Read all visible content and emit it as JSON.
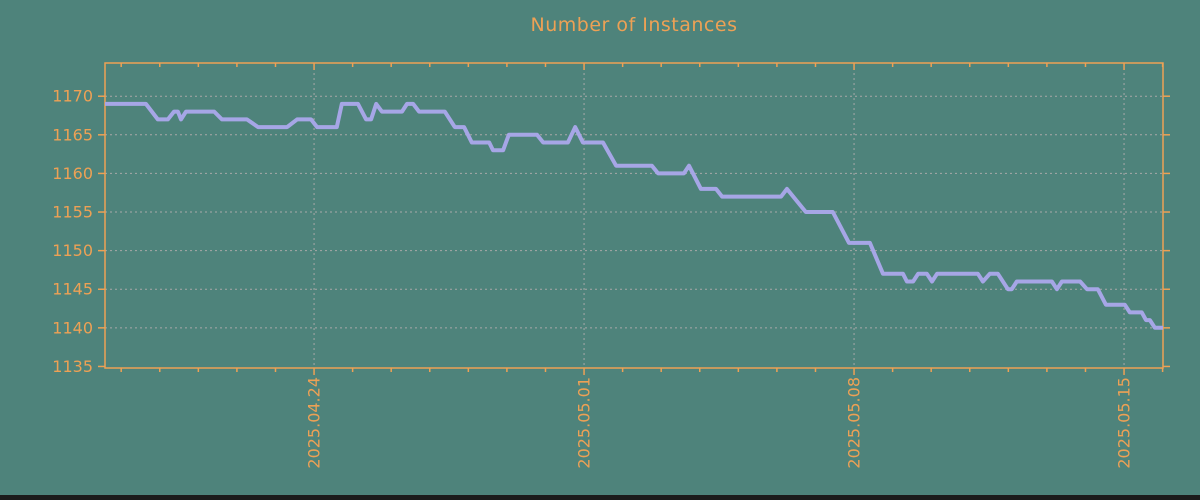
{
  "chart_data": {
    "type": "line",
    "title": "Number of Instances",
    "xlabel": "",
    "ylabel": "",
    "colors": {
      "background": "#4E837B",
      "axis": "#EDA155",
      "text": "#EDA155",
      "grid": "#A8A8A8",
      "line": "#A6A6E6",
      "bottom_bar": "#1C1C1C"
    },
    "y_axis": {
      "range": [
        1134.8,
        1174.3
      ],
      "ticks": [
        1135,
        1140,
        1145,
        1150,
        1155,
        1160,
        1165,
        1170
      ]
    },
    "x_axis": {
      "unit": "days-from-left-edge",
      "range": [
        0,
        27.43
      ],
      "major_ticks": [
        {
          "day": 5.42,
          "label": "2025.04.24"
        },
        {
          "day": 12.42,
          "label": "2025.05.01"
        },
        {
          "day": 19.42,
          "label": "2025.05.08"
        },
        {
          "day": 26.42,
          "label": "2025.05.15"
        }
      ],
      "minor_tick_phase": 0.42,
      "minor_tick_interval": 1
    },
    "grid": {
      "show": true,
      "style": "dashed",
      "vertical_at_major_ticks": true
    },
    "series": [
      {
        "name": "instances",
        "color": "#A6A6E6",
        "points": [
          [
            0,
            1169
          ],
          [
            1.06,
            1169
          ],
          [
            1.37,
            1167
          ],
          [
            1.63,
            1167
          ],
          [
            1.79,
            1168
          ],
          [
            1.89,
            1168
          ],
          [
            1.97,
            1167
          ],
          [
            2.1,
            1168
          ],
          [
            2.83,
            1168
          ],
          [
            3.03,
            1167
          ],
          [
            3.68,
            1167
          ],
          [
            3.97,
            1166
          ],
          [
            4.72,
            1166
          ],
          [
            4.98,
            1167
          ],
          [
            5.34,
            1167
          ],
          [
            5.5,
            1166
          ],
          [
            6.01,
            1166
          ],
          [
            6.14,
            1169
          ],
          [
            6.56,
            1169
          ],
          [
            6.77,
            1167
          ],
          [
            6.9,
            1167
          ],
          [
            7.03,
            1169
          ],
          [
            7.18,
            1168
          ],
          [
            7.7,
            1168
          ],
          [
            7.83,
            1169
          ],
          [
            7.99,
            1169
          ],
          [
            8.14,
            1168
          ],
          [
            8.81,
            1168
          ],
          [
            9.07,
            1166
          ],
          [
            9.31,
            1166
          ],
          [
            9.51,
            1164
          ],
          [
            9.96,
            1164
          ],
          [
            10.06,
            1163
          ],
          [
            10.32,
            1163
          ],
          [
            10.47,
            1165
          ],
          [
            11.2,
            1165
          ],
          [
            11.36,
            1164
          ],
          [
            12.0,
            1164
          ],
          [
            12.19,
            1166
          ],
          [
            12.39,
            1164
          ],
          [
            12.91,
            1164
          ],
          [
            13.25,
            1161
          ],
          [
            14.18,
            1161
          ],
          [
            14.34,
            1160
          ],
          [
            15.01,
            1160
          ],
          [
            15.14,
            1161
          ],
          [
            15.45,
            1158
          ],
          [
            15.84,
            1158
          ],
          [
            16.0,
            1157
          ],
          [
            17.53,
            1157
          ],
          [
            17.68,
            1158
          ],
          [
            18.17,
            1155
          ],
          [
            18.87,
            1155
          ],
          [
            19.29,
            1151
          ],
          [
            19.83,
            1151
          ],
          [
            20.17,
            1147
          ],
          [
            20.69,
            1147
          ],
          [
            20.79,
            1146
          ],
          [
            20.95,
            1146
          ],
          [
            21.08,
            1147
          ],
          [
            21.31,
            1147
          ],
          [
            21.44,
            1146
          ],
          [
            21.57,
            1147
          ],
          [
            22.63,
            1147
          ],
          [
            22.76,
            1146
          ],
          [
            22.94,
            1147
          ],
          [
            23.15,
            1147
          ],
          [
            23.41,
            1145
          ],
          [
            23.51,
            1145
          ],
          [
            23.64,
            1146
          ],
          [
            24.55,
            1146
          ],
          [
            24.68,
            1145
          ],
          [
            24.81,
            1146
          ],
          [
            25.28,
            1146
          ],
          [
            25.46,
            1145
          ],
          [
            25.74,
            1145
          ],
          [
            25.95,
            1143
          ],
          [
            26.44,
            1143
          ],
          [
            26.57,
            1142
          ],
          [
            26.88,
            1142
          ],
          [
            26.99,
            1141
          ],
          [
            27.09,
            1141
          ],
          [
            27.22,
            1140
          ],
          [
            27.43,
            1140
          ]
        ]
      }
    ]
  }
}
